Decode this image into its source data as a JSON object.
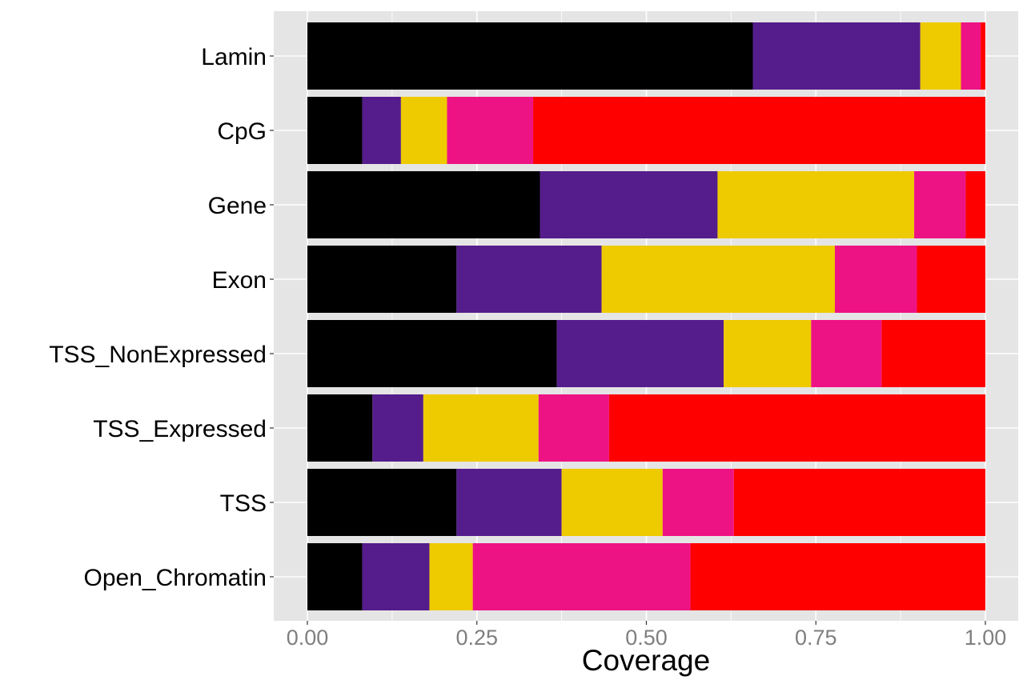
{
  "chart_data": {
    "type": "bar",
    "orientation": "horizontal",
    "stacked": true,
    "categories": [
      "Lamin",
      "CpG",
      "Gene",
      "Exon",
      "TSS_NonExpressed",
      "TSS_Expressed",
      "TSS",
      "Open_Chromatin"
    ],
    "series": [
      {
        "color": "#000000",
        "values": [
          0.657,
          0.081,
          0.343,
          0.22,
          0.368,
          0.096,
          0.22,
          0.081
        ]
      },
      {
        "color": "#551D8C",
        "values": [
          0.247,
          0.057,
          0.262,
          0.214,
          0.246,
          0.075,
          0.155,
          0.099
        ]
      },
      {
        "color": "#EECA00",
        "values": [
          0.06,
          0.068,
          0.29,
          0.344,
          0.129,
          0.17,
          0.149,
          0.064
        ]
      },
      {
        "color": "#EE1385",
        "values": [
          0.029,
          0.127,
          0.076,
          0.121,
          0.104,
          0.104,
          0.105,
          0.321
        ]
      },
      {
        "color": "#FF0000",
        "values": [
          0.007,
          0.667,
          0.029,
          0.101,
          0.153,
          0.555,
          0.371,
          0.435
        ]
      }
    ],
    "xlabel": "Coverage",
    "ylabel": "",
    "xlim": [
      0,
      1
    ],
    "xticks": [
      "0.00",
      "0.25",
      "0.50",
      "0.75",
      "1.00"
    ],
    "xtick_values": [
      0,
      0.25,
      0.5,
      0.75,
      1.0
    ],
    "grid": true,
    "panel_background": "#E5E5E5",
    "legend": "none"
  }
}
